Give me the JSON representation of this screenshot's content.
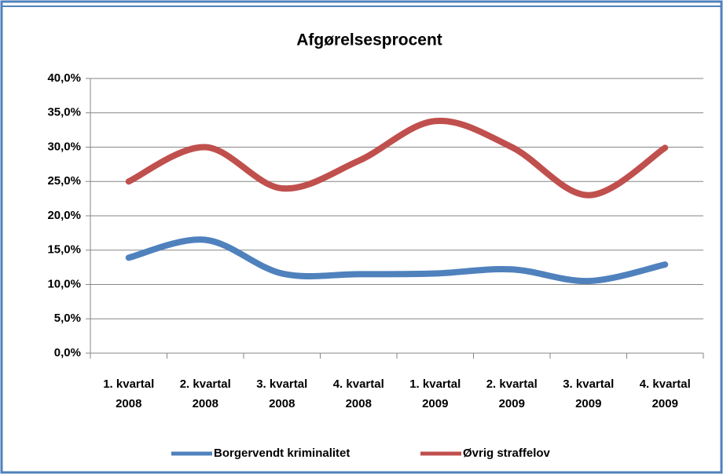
{
  "chart_data": {
    "type": "line",
    "title": "Afgørelsesprocent",
    "categories": [
      "1. kvartal 2008",
      "2. kvartal 2008",
      "3. kvartal 2008",
      "4. kvartal 2008",
      "1. kvartal 2009",
      "2. kvartal 2009",
      "3. kvartal 2009",
      "4. kvartal 2009"
    ],
    "series": [
      {
        "name": "Borgervendt kriminalitet",
        "color": "#4f81bd",
        "values": [
          13.9,
          16.5,
          11.6,
          11.5,
          11.6,
          12.2,
          10.5,
          12.9
        ]
      },
      {
        "name": "Øvrig straffelov",
        "color": "#c0504d",
        "values": [
          25.0,
          30.0,
          24.0,
          28.0,
          33.8,
          30.0,
          23.0,
          29.9
        ]
      }
    ],
    "ylim": [
      0,
      40
    ],
    "yticks": [
      {
        "value": 0,
        "label": "0,0%"
      },
      {
        "value": 5,
        "label": "5,0%"
      },
      {
        "value": 10,
        "label": "10,0%"
      },
      {
        "value": 15,
        "label": "15,0%"
      },
      {
        "value": 20,
        "label": "20,0%"
      },
      {
        "value": 25,
        "label": "25,0%"
      },
      {
        "value": 30,
        "label": "30,0%"
      },
      {
        "value": 35,
        "label": "35,0%"
      },
      {
        "value": 40,
        "label": "40,0%"
      }
    ],
    "grid": true,
    "smooth": true,
    "legend": "bottom"
  }
}
